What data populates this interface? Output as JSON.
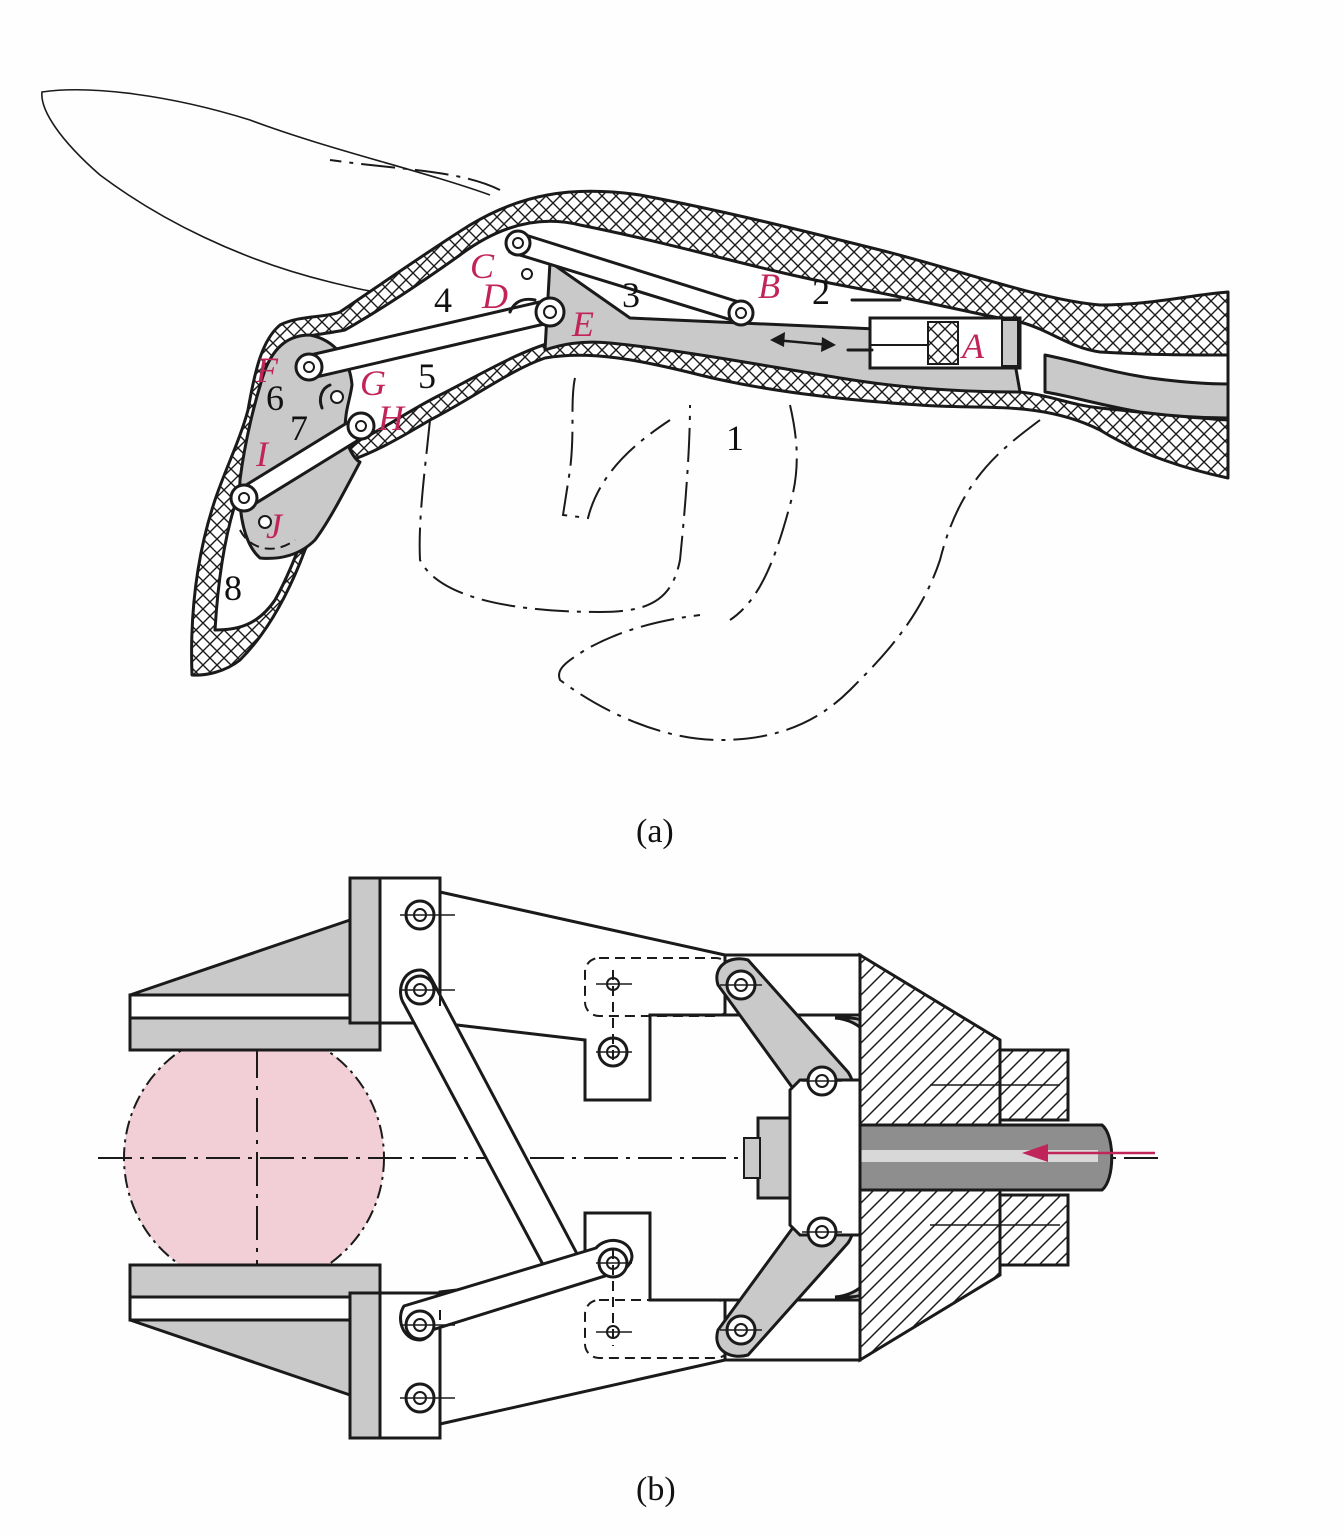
{
  "figure_a": {
    "caption": "(a)",
    "joint_labels": {
      "A": "A",
      "B": "B",
      "C": "C",
      "D": "D",
      "E": "E",
      "F": "F",
      "G": "G",
      "H": "H",
      "I": "I",
      "J": "J"
    },
    "part_numbers": {
      "p1": "1",
      "p2": "2",
      "p3": "3",
      "p4": "4",
      "p5": "5",
      "p6": "6",
      "p7": "7",
      "p8": "8"
    }
  },
  "figure_b": {
    "caption": "(b)"
  },
  "colors": {
    "label_red": "#c0245a",
    "gray": "#c9c9c9",
    "ball_pink": "#f2cfd6",
    "arrow_pink": "#c0245a"
  }
}
